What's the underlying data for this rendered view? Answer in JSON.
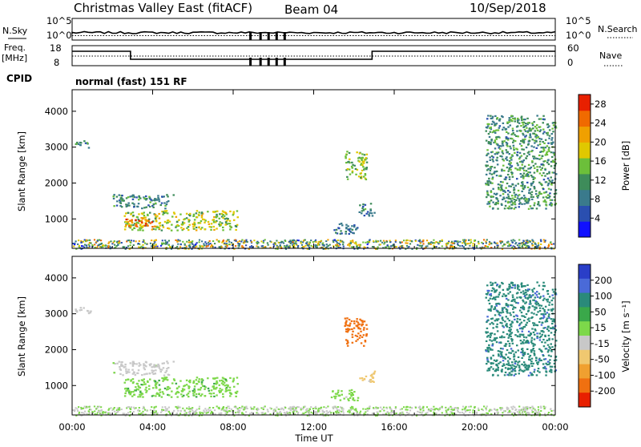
{
  "header": {
    "title": "Christmas Valley East (fitACF)",
    "beam": "Beam 04",
    "date": "10/Sep/2018"
  },
  "strip_sky": {
    "label_line1": "N.Sky",
    "right_label": "N.Search",
    "ticks_left": [
      "10^5",
      "10^0"
    ],
    "ticks_right": [
      "10^5",
      "10^0"
    ]
  },
  "strip_freq": {
    "label_line1": "Freq.",
    "label_line2": "[MHz]",
    "right_label": "Nave",
    "ticks_left": [
      "18",
      "8"
    ],
    "ticks_right": [
      "60",
      "0"
    ]
  },
  "cpid": {
    "label": "CPID",
    "mode": "normal (fast) 151 RF"
  },
  "chart_data": [
    {
      "type": "heatmap",
      "name": "power",
      "ylabel": "Slant Range [km]",
      "yticks": [
        "1000",
        "2000",
        "3000",
        "4000"
      ],
      "ylim": [
        180,
        4600
      ],
      "xlim": [
        0,
        24
      ],
      "colorbar": {
        "label": "Power [dB]",
        "ticks": [
          "4",
          "8",
          "12",
          "16",
          "20",
          "24",
          "28"
        ],
        "range": [
          0,
          30
        ],
        "colors": [
          "#1010ff",
          "#2a4fb0",
          "#3a7a8c",
          "#3e8c5a",
          "#6cbf3a",
          "#e0c800",
          "#f0a000",
          "#f06a00",
          "#e82000"
        ]
      },
      "features": [
        {
          "t0": 2.5,
          "t1": 8.2,
          "r0": 700,
          "r1": 1250,
          "level": 0.55
        },
        {
          "t0": 2.6,
          "t1": 4.2,
          "r0": 800,
          "r1": 1050,
          "level": 0.85
        },
        {
          "t0": 2.0,
          "t1": 5.0,
          "r0": 1300,
          "r1": 1700,
          "level": 0.3
        },
        {
          "t0": 13.5,
          "t1": 14.6,
          "r0": 2100,
          "r1": 2900,
          "level": 0.5
        },
        {
          "t0": 14.2,
          "t1": 15.0,
          "r0": 1100,
          "r1": 1450,
          "level": 0.3
        },
        {
          "t0": 12.8,
          "t1": 14.2,
          "r0": 600,
          "r1": 900,
          "level": 0.25
        },
        {
          "t0": 20.5,
          "t1": 24.0,
          "r0": 1300,
          "r1": 3900,
          "level": 0.35
        },
        {
          "t0": 0.1,
          "t1": 0.9,
          "r0": 3000,
          "r1": 3200,
          "level": 0.35
        }
      ]
    },
    {
      "type": "heatmap",
      "name": "velocity",
      "ylabel": "Slant Range [km]",
      "yticks": [
        "1000",
        "2000",
        "3000",
        "4000"
      ],
      "ylim": [
        180,
        4600
      ],
      "xlim": [
        0,
        24
      ],
      "colorbar": {
        "label": "Velocity [m s⁻¹]",
        "ticks": [
          "200",
          "100",
          "50",
          "15",
          "-15",
          "-50",
          "-100",
          "-200"
        ],
        "range": [
          -250,
          250
        ],
        "colors": [
          "#2a3ec8",
          "#4a6ad8",
          "#2a8a7a",
          "#3aa84a",
          "#7dd84a",
          "#c8c8c8",
          "#f0c870",
          "#f0a030",
          "#f07010",
          "#e82000"
        ]
      },
      "features": [
        {
          "t0": 2.5,
          "t1": 8.2,
          "r0": 700,
          "r1": 1250,
          "velocity": 40
        },
        {
          "t0": 2.0,
          "t1": 5.0,
          "r0": 1300,
          "r1": 1700,
          "velocity": -20
        },
        {
          "t0": 13.5,
          "t1": 14.6,
          "r0": 2100,
          "r1": 2900,
          "velocity": -200
        },
        {
          "t0": 14.2,
          "t1": 15.0,
          "r0": 1100,
          "r1": 1450,
          "velocity": -70
        },
        {
          "t0": 12.8,
          "t1": 14.2,
          "r0": 600,
          "r1": 900,
          "velocity": 20
        },
        {
          "t0": 20.5,
          "t1": 24.0,
          "r0": 1300,
          "r1": 3900,
          "velocity": 150
        },
        {
          "t0": 0.1,
          "t1": 0.9,
          "r0": 3000,
          "r1": 3200,
          "velocity": -20
        }
      ]
    }
  ],
  "xaxis": {
    "ticks": [
      "00:00",
      "04:00",
      "08:00",
      "12:00",
      "16:00",
      "20:00",
      "00:00"
    ],
    "label": "Time UT"
  }
}
